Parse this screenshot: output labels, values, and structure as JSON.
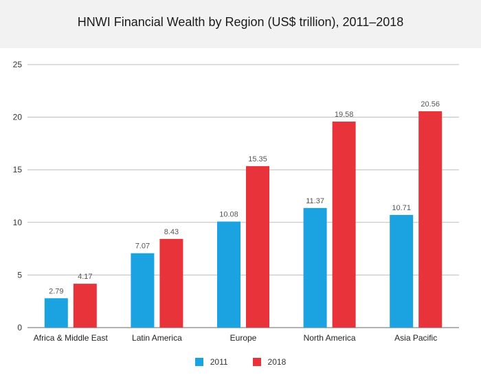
{
  "chart_data": {
    "type": "bar",
    "title": "HNWI Financial Wealth by Region (US$ trillion), 2011–2018",
    "xlabel": "",
    "ylabel": "",
    "ylim": [
      0,
      25
    ],
    "yticks": [
      0,
      5,
      10,
      15,
      20,
      25
    ],
    "grid": true,
    "legend_position": "bottom",
    "categories": [
      "Africa & Middle East",
      "Latin America",
      "Europe",
      "North America",
      "Asia Pacific"
    ],
    "series": [
      {
        "name": "2011",
        "color": "#1aa3e0",
        "values": [
          2.79,
          7.07,
          10.08,
          11.37,
          10.71
        ],
        "labels": [
          "2.79",
          "7.07",
          "10.08",
          "11.37",
          "10.71"
        ]
      },
      {
        "name": "2018",
        "color": "#e8333a",
        "values": [
          4.17,
          8.43,
          15.35,
          19.58,
          20.56
        ],
        "labels": [
          "4.17",
          "8.43",
          "15.35",
          "19.58",
          "20.56"
        ]
      }
    ]
  }
}
